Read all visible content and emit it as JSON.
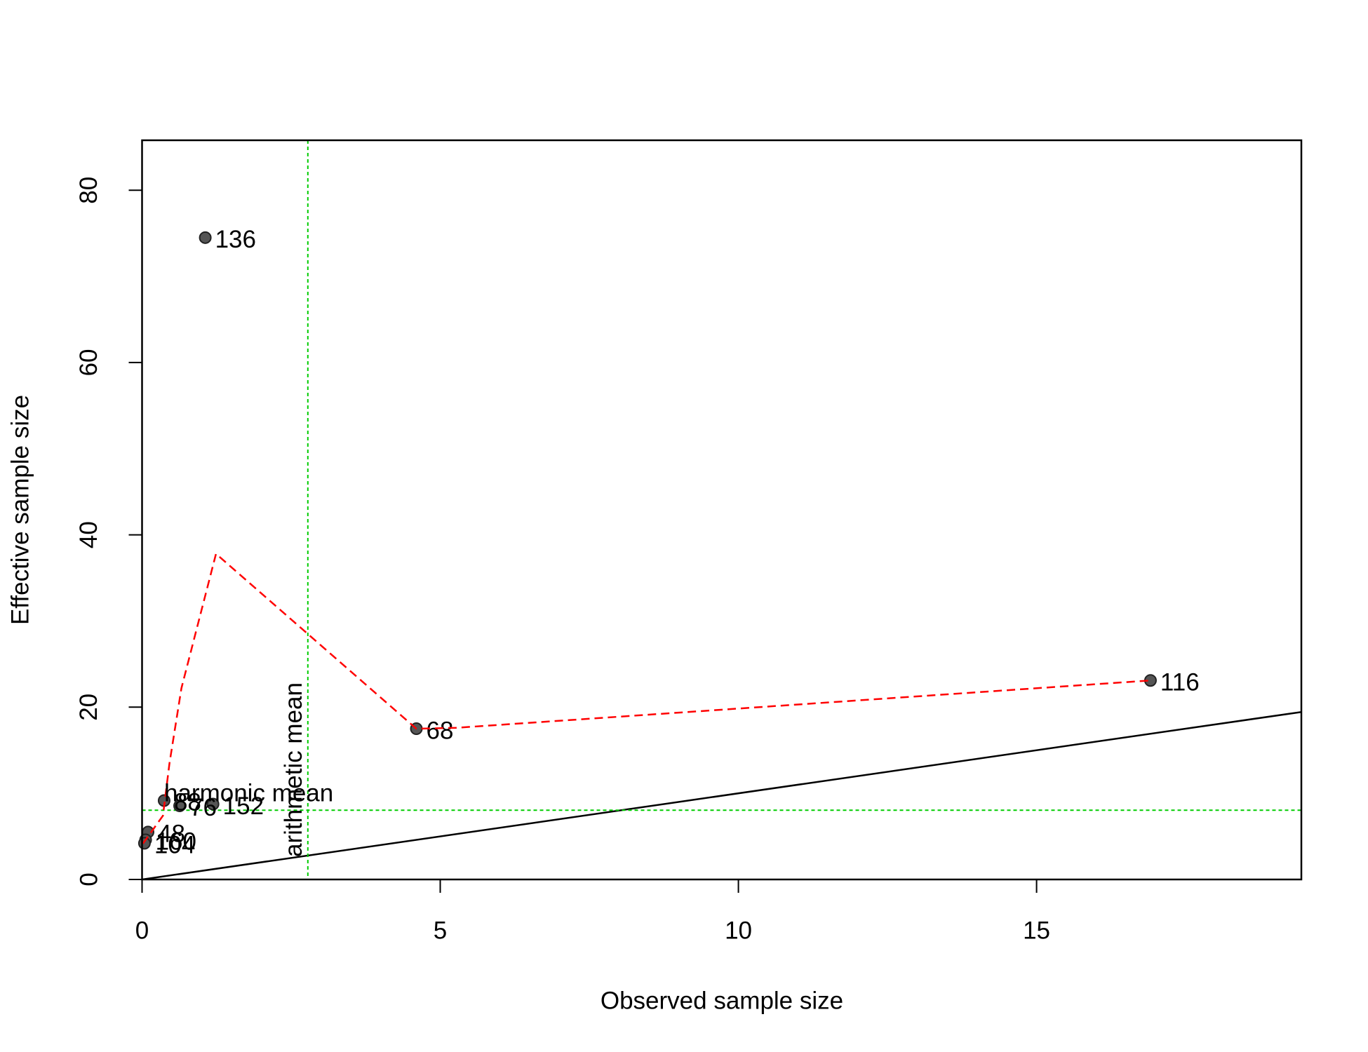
{
  "chart_data": {
    "type": "scatter",
    "x_label": "Observed sample size",
    "y_label": "Effective sample size",
    "xlim": [
      0,
      19.44
    ],
    "ylim": [
      0,
      85.8
    ],
    "xticks": [
      0,
      5,
      10,
      15
    ],
    "yticks": [
      0,
      20,
      40,
      60,
      80
    ],
    "point_color": "#555555",
    "points": {
      "labels": [
        "136",
        "116",
        "68",
        "152",
        "76",
        "88",
        "48",
        "160",
        "104"
      ],
      "x": [
        1.06,
        16.91,
        4.6,
        1.19,
        0.63,
        0.37,
        0.1,
        0.06,
        0.04
      ],
      "values": [
        74.5,
        23.1,
        17.5,
        8.75,
        8.55,
        9.16,
        5.5,
        4.6,
        4.2
      ]
    },
    "smooth_line": {
      "color": "#ff0000",
      "x": [
        0.015,
        0.35,
        0.46,
        0.66,
        1.24,
        4.6,
        5.26,
        16.91
      ],
      "values": [
        4.17,
        7.4,
        13.5,
        22.2,
        37.8,
        17.5,
        17.6,
        23.1
      ]
    },
    "identity_line": {
      "color": "#000000",
      "x": [
        0,
        19.44
      ],
      "values": [
        0,
        19.44
      ]
    },
    "arithmetic_mean": {
      "label": "arithmetic mean",
      "value": 2.78,
      "color": "#00cc00"
    },
    "harmonic_mean": {
      "label": "harmonic mean",
      "value": 8.04,
      "color": "#00cc00"
    }
  }
}
